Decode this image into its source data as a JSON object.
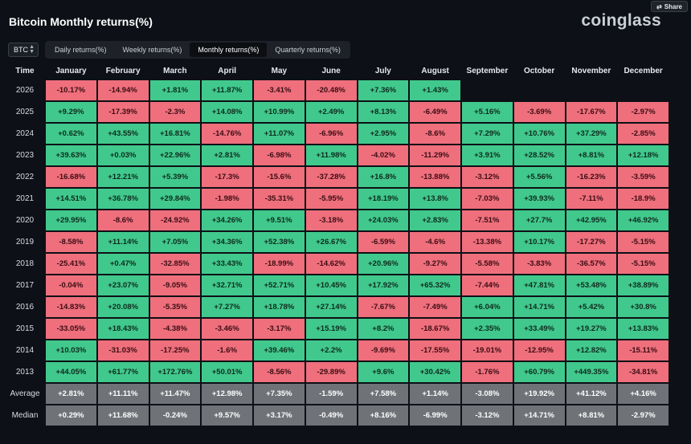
{
  "page": {
    "title": "Bitcoin Monthly returns(%)",
    "brand": "coinglass",
    "share_label": "Share"
  },
  "controls": {
    "coin": "BTC",
    "tabs": [
      "Daily returns(%)",
      "Weekly returns(%)",
      "Monthly returns(%)",
      "Quarterly returns(%)"
    ],
    "active_tab": "Monthly returns(%)"
  },
  "colors": {
    "positive": "#41c98d",
    "negative": "#ef6f7c",
    "summary": "#6f7277",
    "background": "#0d1016"
  },
  "table": {
    "columns": [
      "Time",
      "January",
      "February",
      "March",
      "April",
      "May",
      "June",
      "July",
      "August",
      "September",
      "October",
      "November",
      "December"
    ],
    "rows": [
      {
        "year": "2026",
        "values": [
          "-10.17%",
          "-14.94%",
          "+1.81%",
          "+11.87%",
          "-3.41%",
          "-20.48%",
          "+7.36%",
          "+1.43%",
          "",
          "",
          "",
          ""
        ]
      },
      {
        "year": "2025",
        "values": [
          "+9.29%",
          "-17.39%",
          "-2.3%",
          "+14.08%",
          "+10.99%",
          "+2.49%",
          "+8.13%",
          "-6.49%",
          "+5.16%",
          "-3.69%",
          "-17.67%",
          "-2.97%"
        ]
      },
      {
        "year": "2024",
        "values": [
          "+0.62%",
          "+43.55%",
          "+16.81%",
          "-14.76%",
          "+11.07%",
          "-6.96%",
          "+2.95%",
          "-8.6%",
          "+7.29%",
          "+10.76%",
          "+37.29%",
          "-2.85%"
        ]
      },
      {
        "year": "2023",
        "values": [
          "+39.63%",
          "+0.03%",
          "+22.96%",
          "+2.81%",
          "-6.98%",
          "+11.98%",
          "-4.02%",
          "-11.29%",
          "+3.91%",
          "+28.52%",
          "+8.81%",
          "+12.18%"
        ]
      },
      {
        "year": "2022",
        "values": [
          "-16.68%",
          "+12.21%",
          "+5.39%",
          "-17.3%",
          "-15.6%",
          "-37.28%",
          "+16.8%",
          "-13.88%",
          "-3.12%",
          "+5.56%",
          "-16.23%",
          "-3.59%"
        ]
      },
      {
        "year": "2021",
        "values": [
          "+14.51%",
          "+36.78%",
          "+29.84%",
          "-1.98%",
          "-35.31%",
          "-5.95%",
          "+18.19%",
          "+13.8%",
          "-7.03%",
          "+39.93%",
          "-7.11%",
          "-18.9%"
        ]
      },
      {
        "year": "2020",
        "values": [
          "+29.95%",
          "-8.6%",
          "-24.92%",
          "+34.26%",
          "+9.51%",
          "-3.18%",
          "+24.03%",
          "+2.83%",
          "-7.51%",
          "+27.7%",
          "+42.95%",
          "+46.92%"
        ]
      },
      {
        "year": "2019",
        "values": [
          "-8.58%",
          "+11.14%",
          "+7.05%",
          "+34.36%",
          "+52.38%",
          "+26.67%",
          "-6.59%",
          "-4.6%",
          "-13.38%",
          "+10.17%",
          "-17.27%",
          "-5.15%"
        ]
      },
      {
        "year": "2018",
        "values": [
          "-25.41%",
          "+0.47%",
          "-32.85%",
          "+33.43%",
          "-18.99%",
          "-14.62%",
          "+20.96%",
          "-9.27%",
          "-5.58%",
          "-3.83%",
          "-36.57%",
          "-5.15%"
        ]
      },
      {
        "year": "2017",
        "values": [
          "-0.04%",
          "+23.07%",
          "-9.05%",
          "+32.71%",
          "+52.71%",
          "+10.45%",
          "+17.92%",
          "+65.32%",
          "-7.44%",
          "+47.81%",
          "+53.48%",
          "+38.89%"
        ]
      },
      {
        "year": "2016",
        "values": [
          "-14.83%",
          "+20.08%",
          "-5.35%",
          "+7.27%",
          "+18.78%",
          "+27.14%",
          "-7.67%",
          "-7.49%",
          "+6.04%",
          "+14.71%",
          "+5.42%",
          "+30.8%"
        ]
      },
      {
        "year": "2015",
        "values": [
          "-33.05%",
          "+18.43%",
          "-4.38%",
          "-3.46%",
          "-3.17%",
          "+15.19%",
          "+8.2%",
          "-18.67%",
          "+2.35%",
          "+33.49%",
          "+19.27%",
          "+13.83%"
        ]
      },
      {
        "year": "2014",
        "values": [
          "+10.03%",
          "-31.03%",
          "-17.25%",
          "-1.6%",
          "+39.46%",
          "+2.2%",
          "-9.69%",
          "-17.55%",
          "-19.01%",
          "-12.95%",
          "+12.82%",
          "-15.11%"
        ]
      },
      {
        "year": "2013",
        "values": [
          "+44.05%",
          "+61.77%",
          "+172.76%",
          "+50.01%",
          "-8.56%",
          "-29.89%",
          "+9.6%",
          "+30.42%",
          "-1.76%",
          "+60.79%",
          "+449.35%",
          "-34.81%"
        ]
      }
    ],
    "summary": [
      {
        "label": "Average",
        "values": [
          "+2.81%",
          "+11.11%",
          "+11.47%",
          "+12.98%",
          "+7.35%",
          "-1.59%",
          "+7.58%",
          "+1.14%",
          "-3.08%",
          "+19.92%",
          "+41.12%",
          "+4.16%"
        ]
      },
      {
        "label": "Median",
        "values": [
          "+0.29%",
          "+11.68%",
          "-0.24%",
          "+9.57%",
          "+3.17%",
          "-0.49%",
          "+8.16%",
          "-6.99%",
          "-3.12%",
          "+14.71%",
          "+8.81%",
          "-2.97%"
        ]
      }
    ]
  }
}
